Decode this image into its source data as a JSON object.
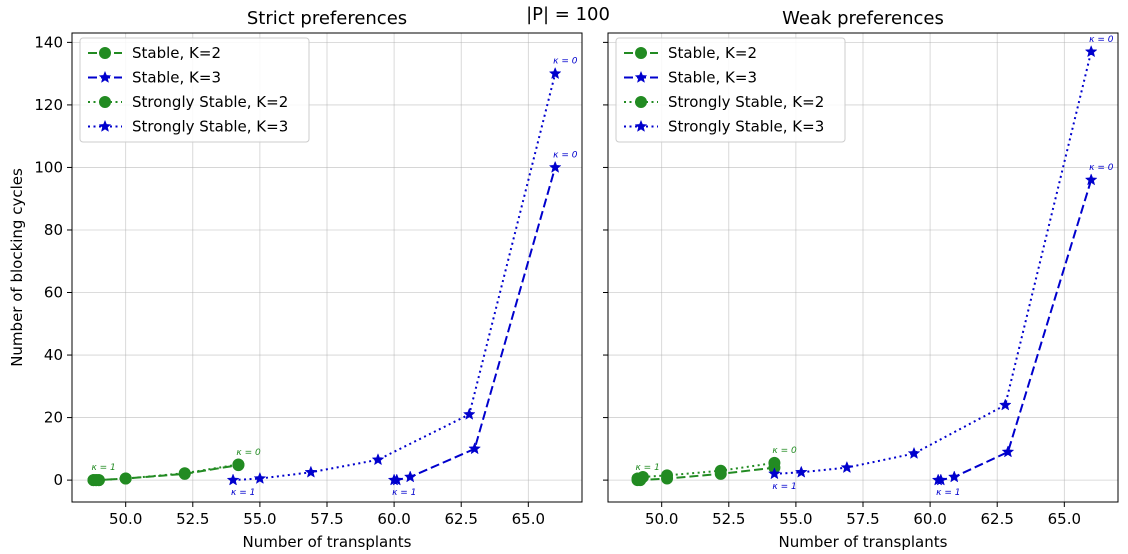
{
  "suptitle": "|P| = 100",
  "colors": {
    "green": "#228b22",
    "blue": "#0000cd",
    "grid": "#b0b0b0"
  },
  "chart_data": [
    {
      "type": "line",
      "title": "Strict preferences",
      "xlabel": "Number of transplants",
      "ylabel": "Number of blocking cycles",
      "xlim": [
        48.0,
        67.0
      ],
      "ylim": [
        -7,
        143
      ],
      "xticks": [
        "50.0",
        "52.5",
        "55.0",
        "57.5",
        "60.0",
        "62.5",
        "65.0"
      ],
      "yticks": [
        "0",
        "20",
        "40",
        "60",
        "80",
        "100",
        "120",
        "140"
      ],
      "grid": true,
      "legend_position": "top-left",
      "series": [
        {
          "name": "Stable, K=2",
          "color": "green",
          "linestyle": "dashed",
          "marker": "circle",
          "x": [
            48.8,
            48.9,
            49.0,
            50.0,
            52.2,
            54.2
          ],
          "y": [
            0,
            0,
            0,
            0.5,
            2,
            4.8
          ]
        },
        {
          "name": "Stable, K=3",
          "color": "blue",
          "linestyle": "dashed",
          "marker": "star",
          "x": [
            60.0,
            60.1,
            60.6,
            63.0,
            66.0
          ],
          "y": [
            0,
            0,
            1,
            10,
            100
          ]
        },
        {
          "name": "Strongly Stable, K=2",
          "color": "green",
          "linestyle": "dotted",
          "marker": "circle",
          "x": [
            48.8,
            48.9,
            49.0,
            50.0,
            52.2,
            54.2
          ],
          "y": [
            0,
            0,
            0,
            0.5,
            2.2,
            5
          ]
        },
        {
          "name": "Strongly Stable, K=3",
          "color": "blue",
          "linestyle": "dotted",
          "marker": "star",
          "x": [
            54.0,
            55.0,
            56.9,
            59.4,
            62.8,
            66.0
          ],
          "y": [
            0,
            0.5,
            2.5,
            6.5,
            21,
            130
          ]
        }
      ],
      "annotations": [
        {
          "text": "κ = 1",
          "x": 48.8,
          "y": 0,
          "color": "green",
          "pos": "above"
        },
        {
          "text": "κ = 0",
          "x": 54.2,
          "y": 4.8,
          "color": "green",
          "pos": "above"
        },
        {
          "text": "κ = 1",
          "x": 54.0,
          "y": 0,
          "color": "blue",
          "pos": "below"
        },
        {
          "text": "κ = 1",
          "x": 60.0,
          "y": 0,
          "color": "blue",
          "pos": "below"
        },
        {
          "text": "κ = 0",
          "x": 66.0,
          "y": 100,
          "color": "blue",
          "pos": "above"
        },
        {
          "text": "κ = 0",
          "x": 66.0,
          "y": 130,
          "color": "blue",
          "pos": "above"
        }
      ]
    },
    {
      "type": "line",
      "title": "Weak preferences",
      "xlabel": "Number of transplants",
      "ylabel": "",
      "xlim": [
        48.0,
        67.0
      ],
      "ylim": [
        -7,
        143
      ],
      "xticks": [
        "50.0",
        "52.5",
        "55.0",
        "57.5",
        "60.0",
        "62.5",
        "65.0"
      ],
      "yticks": [],
      "grid": true,
      "legend_position": "top-left",
      "series": [
        {
          "name": "Stable, K=2",
          "color": "green",
          "linestyle": "dashed",
          "marker": "circle",
          "x": [
            49.1,
            49.2,
            50.2,
            52.2,
            54.2
          ],
          "y": [
            0,
            0,
            0.5,
            2,
            4
          ]
        },
        {
          "name": "Stable, K=3",
          "color": "blue",
          "linestyle": "dashed",
          "marker": "star",
          "x": [
            60.3,
            60.4,
            60.9,
            62.9,
            66.0
          ],
          "y": [
            0,
            0,
            1,
            9,
            96
          ]
        },
        {
          "name": "Strongly Stable, K=2",
          "color": "green",
          "linestyle": "dotted",
          "marker": "circle",
          "x": [
            49.1,
            49.3,
            50.2,
            52.2,
            54.2
          ],
          "y": [
            0.5,
            1,
            1.5,
            3,
            5.5
          ]
        },
        {
          "name": "Strongly Stable, K=3",
          "color": "blue",
          "linestyle": "dotted",
          "marker": "star",
          "x": [
            54.2,
            55.2,
            56.9,
            59.4,
            62.8,
            66.0
          ],
          "y": [
            2,
            2.5,
            4,
            8.5,
            24,
            137
          ]
        }
      ],
      "annotations": [
        {
          "text": "κ = 1",
          "x": 49.1,
          "y": 0,
          "color": "green",
          "pos": "above"
        },
        {
          "text": "κ = 0",
          "x": 54.2,
          "y": 5.5,
          "color": "green",
          "pos": "above"
        },
        {
          "text": "κ = 1",
          "x": 54.2,
          "y": 2,
          "color": "blue",
          "pos": "below"
        },
        {
          "text": "κ = 1",
          "x": 60.3,
          "y": 0,
          "color": "blue",
          "pos": "below"
        },
        {
          "text": "κ = 0",
          "x": 66.0,
          "y": 96,
          "color": "blue",
          "pos": "above"
        },
        {
          "text": "κ = 0",
          "x": 66.0,
          "y": 137,
          "color": "blue",
          "pos": "above"
        }
      ]
    }
  ]
}
